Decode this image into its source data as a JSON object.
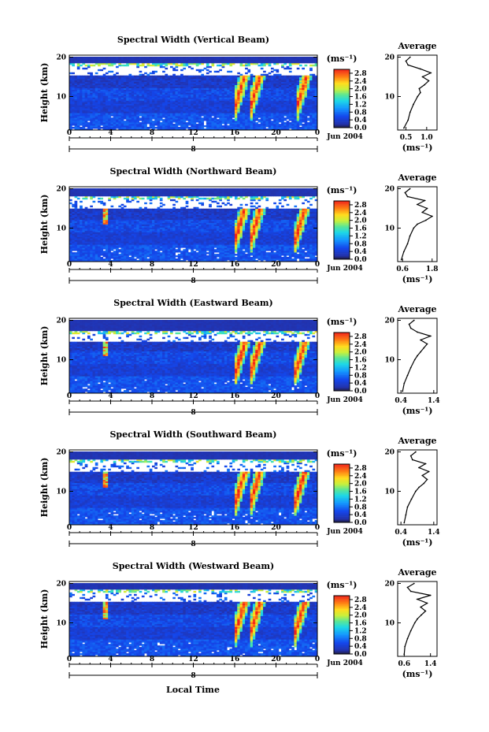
{
  "figure": {
    "xlabel": "Local Time",
    "date_label": "Jun 2004",
    "day_label": "8",
    "colorbar_unit": "(ms⁻¹)",
    "profile_title": "Average",
    "profile_xlabel": "(ms⁻¹)",
    "height_label": "Height (km)"
  },
  "chart_data": [
    {
      "type": "heatmap",
      "title": "Spectral Width (Vertical Beam)",
      "ylabel": "Height (km)",
      "xlabel": "Local Time",
      "x_ticks": [
        "0",
        "4",
        "8",
        "12",
        "16",
        "20",
        "0"
      ],
      "y_ticks": [
        "10",
        "20"
      ],
      "xlim": [
        0,
        24
      ],
      "ylim": [
        1.5,
        20.5
      ],
      "colorbar": {
        "label": "(ms⁻¹)",
        "ticks": [
          "0.0",
          "0.4",
          "0.8",
          "1.2",
          "1.6",
          "2.0",
          "2.4",
          "2.8"
        ],
        "range": [
          0,
          3.0
        ]
      },
      "features": {
        "tropopause_band_km": [
          15.5,
          18.5
        ],
        "event_times_lt": [
          17.0,
          18.5,
          23.0
        ],
        "spike_time_lt": null
      },
      "average_profile": {
        "title": "Average",
        "xlabel": "(ms⁻¹)",
        "x_ticks": [
          "0.5",
          "1.0"
        ],
        "xlim": [
          0.3,
          1.25
        ],
        "height_km": [
          2,
          4,
          6,
          8,
          10,
          11,
          12,
          13,
          14,
          15,
          16,
          17,
          18,
          19,
          20
        ],
        "value": [
          0.45,
          0.55,
          0.6,
          0.68,
          0.78,
          0.85,
          0.82,
          0.95,
          1.05,
          0.9,
          1.1,
          0.85,
          0.55,
          0.5,
          0.6
        ]
      }
    },
    {
      "type": "heatmap",
      "title": "Spectral Width (Northward Beam)",
      "ylabel": "Height (km)",
      "xlabel": "Local Time",
      "x_ticks": [
        "0",
        "4",
        "8",
        "12",
        "16",
        "20",
        "0"
      ],
      "y_ticks": [
        "10",
        "20"
      ],
      "xlim": [
        0,
        24
      ],
      "ylim": [
        1.5,
        20.5
      ],
      "colorbar": {
        "label": "(ms⁻¹)",
        "ticks": [
          "0.0",
          "0.4",
          "0.8",
          "1.2",
          "1.6",
          "2.0",
          "2.4",
          "2.8"
        ],
        "range": [
          0,
          3.0
        ]
      },
      "features": {
        "tropopause_band_km": [
          15.0,
          18.0
        ],
        "event_times_lt": [
          17.0,
          18.5,
          22.8
        ],
        "spike_time_lt": 3.5
      },
      "average_profile": {
        "title": "Average",
        "xlabel": "(ms⁻¹)",
        "x_ticks": [
          "0.6",
          "1.8"
        ],
        "xlim": [
          0.4,
          2.0
        ],
        "height_km": [
          2,
          4,
          6,
          8,
          10,
          11,
          12,
          13,
          14,
          15,
          16,
          17,
          18,
          19,
          20
        ],
        "value": [
          0.55,
          0.65,
          0.8,
          0.9,
          1.05,
          1.2,
          1.55,
          1.8,
          1.4,
          1.6,
          1.2,
          1.5,
          0.8,
          0.7,
          0.9
        ]
      }
    },
    {
      "type": "heatmap",
      "title": "Spectral Width (Eastward Beam)",
      "ylabel": "Height (km)",
      "xlabel": "Local Time",
      "x_ticks": [
        "0",
        "4",
        "8",
        "12",
        "16",
        "20",
        "0"
      ],
      "y_ticks": [
        "10",
        "20"
      ],
      "xlim": [
        0,
        24
      ],
      "ylim": [
        1.5,
        20.5
      ],
      "colorbar": {
        "label": "(ms⁻¹)",
        "ticks": [
          "0.0",
          "0.4",
          "0.8",
          "1.2",
          "1.6",
          "2.0",
          "2.4",
          "2.8"
        ],
        "range": [
          0,
          3.0
        ]
      },
      "features": {
        "tropopause_band_km": [
          14.5,
          17.5
        ],
        "event_times_lt": [
          17.0,
          18.5,
          22.8
        ],
        "spike_time_lt": 3.5
      },
      "average_profile": {
        "title": "Average",
        "xlabel": "(ms⁻¹)",
        "x_ticks": [
          "0.4",
          "1.4"
        ],
        "xlim": [
          0.3,
          1.5
        ],
        "height_km": [
          2,
          4,
          6,
          8,
          10,
          11,
          12,
          13,
          14,
          15,
          16,
          17,
          18,
          19,
          20
        ],
        "value": [
          0.45,
          0.5,
          0.6,
          0.7,
          0.82,
          0.9,
          1.0,
          1.1,
          1.2,
          1.0,
          1.3,
          0.9,
          0.7,
          0.65,
          0.8
        ]
      }
    },
    {
      "type": "heatmap",
      "title": "Spectral Width (Southward Beam)",
      "ylabel": "Height (km)",
      "xlabel": "Local Time",
      "x_ticks": [
        "0",
        "4",
        "8",
        "12",
        "16",
        "20",
        "0"
      ],
      "y_ticks": [
        "10",
        "20"
      ],
      "xlim": [
        0,
        24
      ],
      "ylim": [
        1.5,
        20.5
      ],
      "colorbar": {
        "label": "(ms⁻¹)",
        "ticks": [
          "0.0",
          "0.4",
          "0.8",
          "1.2",
          "1.6",
          "2.0",
          "2.4",
          "2.8"
        ],
        "range": [
          0,
          3.0
        ]
      },
      "features": {
        "tropopause_band_km": [
          15.0,
          18.0
        ],
        "event_times_lt": [
          17.0,
          18.5,
          22.8
        ],
        "spike_time_lt": 3.5
      },
      "average_profile": {
        "title": "Average",
        "xlabel": "(ms⁻¹)",
        "x_ticks": [
          "0.4",
          "1.4"
        ],
        "xlim": [
          0.3,
          1.5
        ],
        "height_km": [
          2,
          4,
          6,
          8,
          10,
          11,
          12,
          13,
          14,
          15,
          16,
          17,
          18,
          19,
          20
        ],
        "value": [
          0.5,
          0.55,
          0.6,
          0.72,
          0.85,
          0.95,
          1.1,
          1.2,
          1.05,
          1.25,
          0.95,
          1.15,
          0.75,
          0.7,
          0.85
        ]
      }
    },
    {
      "type": "heatmap",
      "title": "Spectral Width (Westward Beam)",
      "ylabel": "Height (km)",
      "xlabel": "Local Time",
      "x_ticks": [
        "0",
        "4",
        "8",
        "12",
        "16",
        "20",
        "0"
      ],
      "y_ticks": [
        "10",
        "20"
      ],
      "xlim": [
        0,
        24
      ],
      "ylim": [
        1.5,
        20.5
      ],
      "colorbar": {
        "label": "(ms⁻¹)",
        "ticks": [
          "0.0",
          "0.4",
          "0.8",
          "1.2",
          "1.6",
          "2.0",
          "2.4",
          "2.8"
        ],
        "range": [
          0,
          3.0
        ]
      },
      "features": {
        "tropopause_band_km": [
          15.5,
          18.5
        ],
        "event_times_lt": [
          17.0,
          18.5,
          22.8
        ],
        "spike_time_lt": 3.5
      },
      "average_profile": {
        "title": "Average",
        "xlabel": "(ms⁻¹)",
        "x_ticks": [
          "0.6",
          "1.4"
        ],
        "xlim": [
          0.4,
          1.6
        ],
        "height_km": [
          2,
          4,
          6,
          8,
          10,
          11,
          12,
          13,
          14,
          15,
          16,
          17,
          18,
          19,
          20
        ],
        "value": [
          0.6,
          0.62,
          0.7,
          0.8,
          0.92,
          1.0,
          1.12,
          1.25,
          1.1,
          1.3,
          1.0,
          1.4,
          0.8,
          0.7,
          0.9
        ]
      }
    }
  ]
}
